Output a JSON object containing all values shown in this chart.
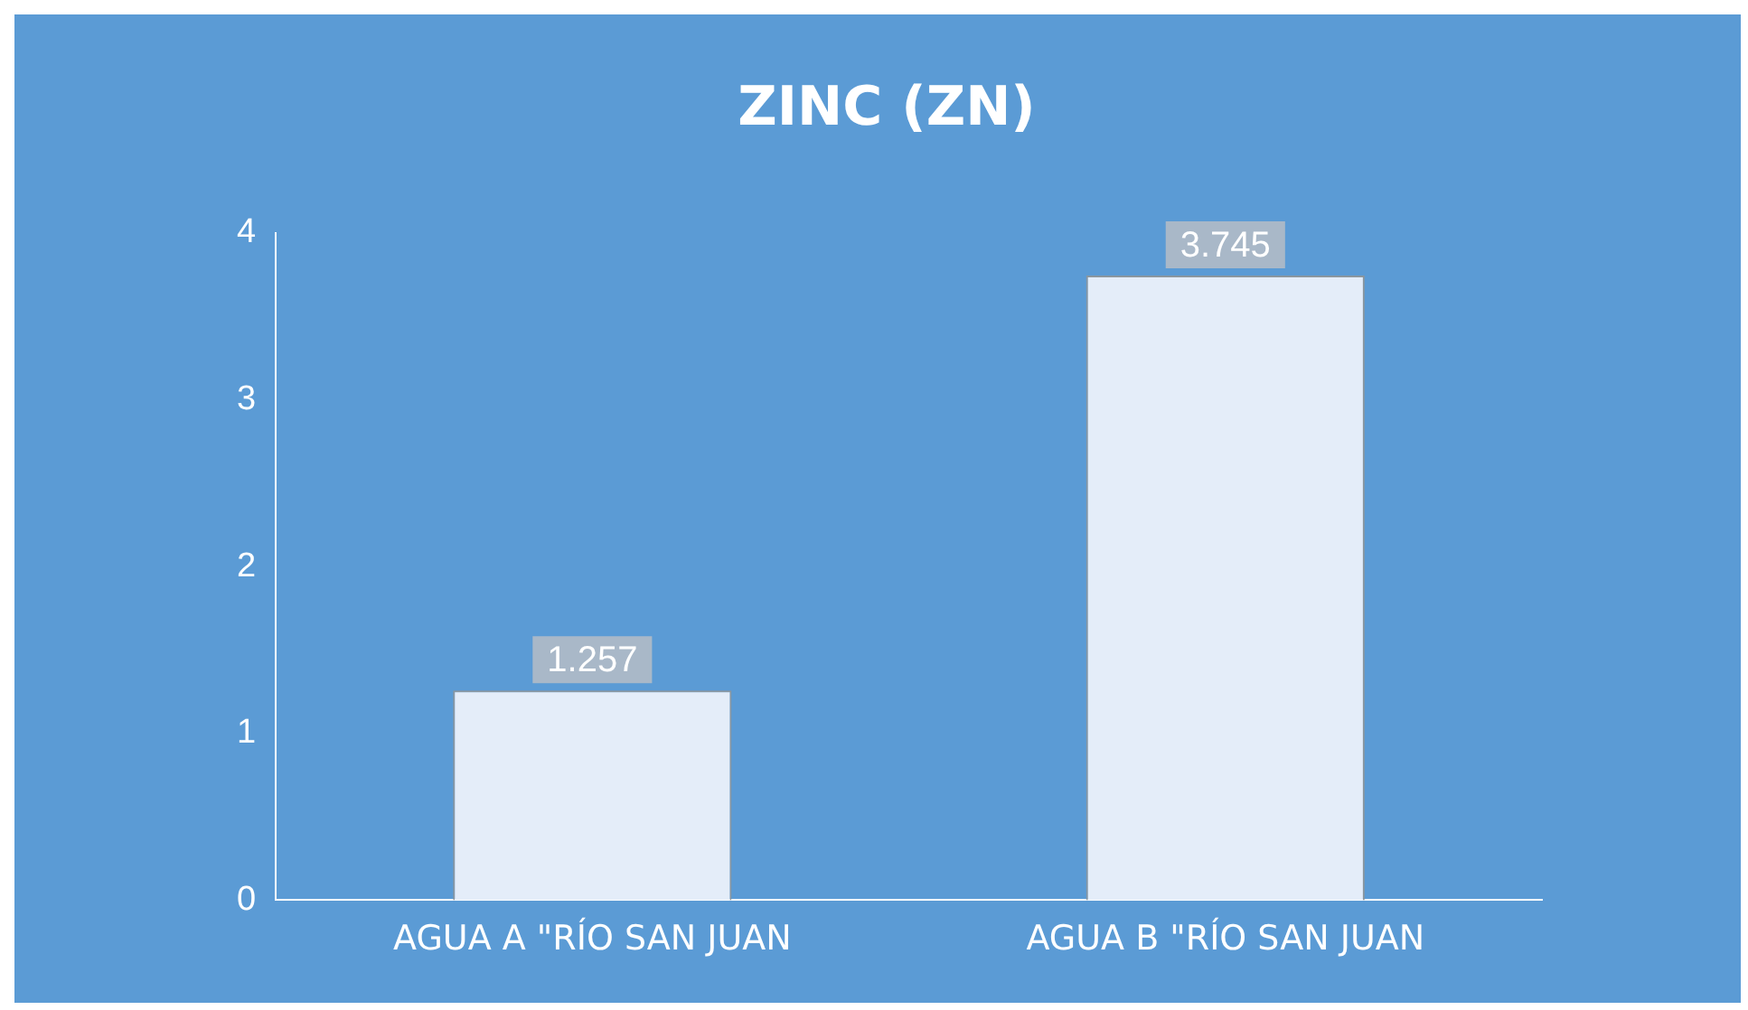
{
  "chart_data": {
    "type": "bar",
    "title": "ZINC (ZN)",
    "categories": [
      "AGUA A \"RÍO SAN JUAN",
      "AGUA B \"RÍO SAN JUAN"
    ],
    "values": [
      1.257,
      3.745
    ],
    "color": "#e4edf9",
    "ylim": [
      0,
      4
    ],
    "yticks": [
      0,
      1,
      2,
      3,
      4
    ],
    "grid": false,
    "data_labels": true
  }
}
